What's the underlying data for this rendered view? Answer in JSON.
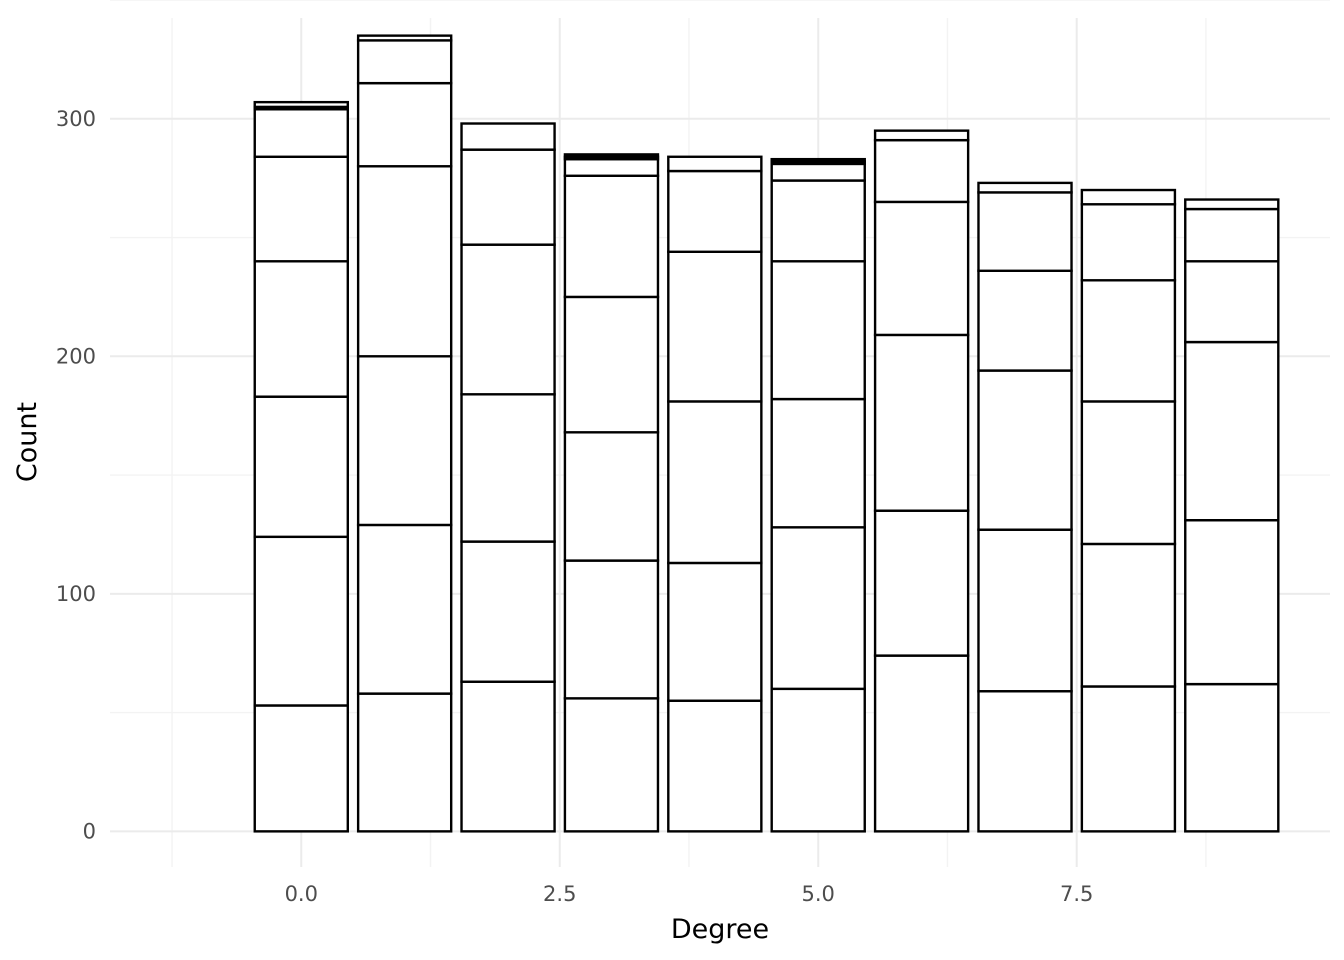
{
  "chart_data": {
    "type": "bar",
    "stacked": true,
    "x": [
      0,
      1,
      2,
      3,
      4,
      5,
      6,
      7,
      8,
      9
    ],
    "stack_boundaries": [
      [
        53,
        124,
        183,
        240,
        284,
        304,
        305,
        307
      ],
      [
        58,
        129,
        200,
        280,
        315,
        333,
        335
      ],
      [
        63,
        122,
        184,
        247,
        287,
        298
      ],
      [
        56,
        114,
        168,
        225,
        276,
        283,
        284,
        285
      ],
      [
        55,
        113,
        181,
        244,
        278,
        284
      ],
      [
        60,
        128,
        182,
        240,
        274,
        281,
        282,
        283
      ],
      [
        74,
        135,
        209,
        265,
        291,
        295
      ],
      [
        59,
        127,
        194,
        236,
        269,
        273
      ],
      [
        61,
        121,
        181,
        232,
        264,
        270
      ],
      [
        62,
        131,
        206,
        240,
        262,
        266
      ]
    ],
    "xlabel": "Degree",
    "ylabel": "Count",
    "xlim": [
      -1.85,
      9.95
    ],
    "ylim": [
      -15,
      350
    ],
    "x_ticks": [
      0,
      2.5,
      5,
      7.5
    ],
    "x_tick_labels": [
      "0.0",
      "2.5",
      "5.0",
      "7.5"
    ],
    "y_ticks": [
      0,
      100,
      200,
      300
    ],
    "y_tick_labels": [
      "0",
      "100",
      "200",
      "300"
    ],
    "bar_width": 0.9,
    "bar_fill": "#ffffff",
    "bar_outline": "#000000",
    "grid": true,
    "legend": "none"
  }
}
